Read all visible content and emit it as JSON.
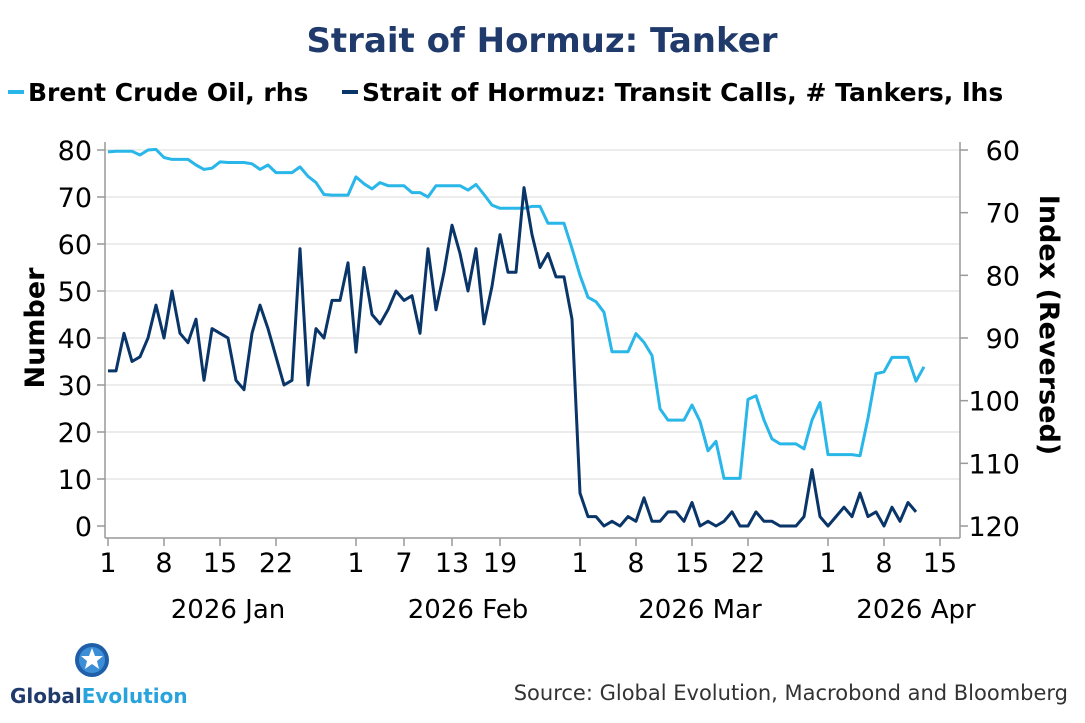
{
  "chart_data": {
    "type": "line",
    "title": "Strait of Hormuz: Tanker",
    "legend_position": "top",
    "colors": {
      "brent": "#29b6e8",
      "tankers": "#0a3568",
      "title": "#1f3a6b",
      "grid": "#d9d9d9"
    },
    "series": [
      {
        "name": "Strait of Hormuz: Transit Calls,  # Tankers, lhs",
        "legend_label": "Strait of Hormuz: Transit Calls,  # Tankers, lhs",
        "axis": "left",
        "day_offsets": [
          0,
          1,
          2,
          3,
          4,
          5,
          6,
          7,
          8,
          9,
          10,
          11,
          12,
          13,
          14,
          15,
          16,
          17,
          18,
          19,
          20,
          21,
          22,
          23,
          24,
          25,
          26,
          27,
          28,
          29,
          30,
          31,
          32,
          33,
          34,
          35,
          36,
          37,
          38,
          39,
          40,
          41,
          42,
          43,
          44,
          45,
          46,
          47,
          48,
          49,
          50,
          51,
          52,
          53,
          54,
          55,
          56,
          57,
          58,
          59,
          60,
          61,
          62,
          63,
          64,
          65,
          66,
          67,
          68,
          69,
          70,
          71,
          72,
          73,
          74,
          75,
          76,
          77,
          78,
          79,
          80,
          81,
          82,
          83,
          84,
          85,
          86,
          87,
          88,
          89,
          90,
          91,
          92,
          93,
          94,
          95,
          96,
          97,
          98,
          99,
          100,
          101,
          102
        ],
        "values": [
          33,
          33,
          41,
          35,
          36,
          40,
          47,
          40,
          50,
          41,
          39,
          44,
          31,
          42,
          41,
          40,
          31,
          29,
          41,
          47,
          42,
          36,
          30,
          31,
          59,
          30,
          42,
          40,
          48,
          48,
          56,
          37,
          55,
          45,
          43,
          46,
          50,
          48,
          49,
          41,
          59,
          46,
          54,
          64,
          58,
          50,
          59,
          43,
          51,
          62,
          54,
          54,
          72,
          62,
          55,
          58,
          53,
          53,
          44,
          7,
          2,
          2,
          0,
          1,
          0,
          2,
          1,
          6,
          1,
          1,
          3,
          3,
          1,
          5,
          0,
          1,
          0,
          1,
          3,
          0,
          0,
          3,
          1,
          1,
          0,
          0,
          0,
          2,
          12,
          2,
          0,
          2,
          4,
          2,
          7,
          2,
          3,
          0,
          4,
          1,
          5,
          3,
          null
        ]
      },
      {
        "name": "Brent Crude Oil, rhs",
        "legend_label": "Brent Crude Oil, rhs",
        "axis": "right",
        "day_offsets": [
          0,
          1,
          2,
          3,
          4,
          5,
          6,
          7,
          8,
          9,
          10,
          11,
          12,
          13,
          14,
          15,
          16,
          17,
          18,
          19,
          20,
          21,
          22,
          23,
          24,
          25,
          26,
          27,
          28,
          29,
          30,
          31,
          32,
          33,
          34,
          35,
          36,
          37,
          38,
          39,
          40,
          41,
          42,
          43,
          44,
          45,
          46,
          47,
          48,
          49,
          50,
          51,
          52,
          53,
          54,
          55,
          56,
          57,
          58,
          59,
          60,
          61,
          62,
          63,
          64,
          65,
          66,
          67,
          68,
          69,
          70,
          71,
          72,
          73,
          74,
          75,
          76,
          77,
          78,
          79,
          80,
          81,
          82,
          83,
          84,
          85,
          86,
          87,
          88,
          89,
          90,
          91,
          92,
          93,
          94,
          95,
          96,
          97,
          98,
          99,
          100,
          101,
          102
        ],
        "values": [
          60.3,
          60.2,
          60.2,
          60.2,
          60.8,
          60,
          59.9,
          61.2,
          61.5,
          61.5,
          61.5,
          62.4,
          63.1,
          62.9,
          61.9,
          62,
          62,
          62,
          62.2,
          63.1,
          62.4,
          63.6,
          63.6,
          63.6,
          62.7,
          64.2,
          65.2,
          67.1,
          67.2,
          67.2,
          67.2,
          64.3,
          65.4,
          66.2,
          65.2,
          65.7,
          65.7,
          65.7,
          66.8,
          66.8,
          67.5,
          65.7,
          65.7,
          65.7,
          65.7,
          66.4,
          65.5,
          67.1,
          68.8,
          69.3,
          69.3,
          69.3,
          69.3,
          69,
          69,
          71.7,
          71.7,
          71.7,
          75.7,
          80,
          83.5,
          84.2,
          85.9,
          92.2,
          92.2,
          92.2,
          89.3,
          90.7,
          92.8,
          101.3,
          103.1,
          103.1,
          103.1,
          100.7,
          103.3,
          108,
          106.5,
          112.4,
          112.4,
          112.4,
          99.8,
          99.2,
          103.1,
          106.1,
          106.9,
          106.9,
          106.9,
          107.7,
          103.1,
          100.3,
          108.6,
          108.6,
          108.6,
          108.6,
          108.8,
          102.8,
          95.7,
          95.4,
          93.1,
          93.1,
          93.1,
          96.9,
          94.6
        ]
      }
    ],
    "x_axis": {
      "start_offset": 0,
      "end_offset": 103,
      "ticks": [
        {
          "label": "1",
          "offset": 0
        },
        {
          "label": "8",
          "offset": 7
        },
        {
          "label": "15",
          "offset": 14
        },
        {
          "label": "22",
          "offset": 21
        },
        {
          "label": "1",
          "offset": 31
        },
        {
          "label": "7",
          "offset": 37
        },
        {
          "label": "13",
          "offset": 43
        },
        {
          "label": "19",
          "offset": 49
        },
        {
          "label": "1",
          "offset": 59
        },
        {
          "label": "8",
          "offset": 66
        },
        {
          "label": "15",
          "offset": 73
        },
        {
          "label": "22",
          "offset": 80
        },
        {
          "label": "1",
          "offset": 90
        },
        {
          "label": "8",
          "offset": 97
        },
        {
          "label": "15",
          "offset": 104
        }
      ],
      "months": [
        {
          "label": "2026 Jan",
          "offset": 15
        },
        {
          "label": "2026 Feb",
          "offset": 45
        },
        {
          "label": "2026 Mar",
          "offset": 74
        },
        {
          "label": "2026 Apr",
          "offset": 101
        }
      ]
    },
    "y_left": {
      "label": "Number",
      "ylim": [
        0,
        80
      ],
      "ticks": [
        0,
        10,
        20,
        30,
        40,
        50,
        60,
        70,
        80
      ]
    },
    "y_right": {
      "label": "Index (Reversed)",
      "ylim": [
        60,
        120
      ],
      "reversed": true,
      "ticks": [
        60,
        70,
        80,
        90,
        100,
        110,
        120
      ]
    },
    "grid": true,
    "source": "Source: Global Evolution, Macrobond and Bloomberg"
  },
  "logo": {
    "text_part1": "Global",
    "text_part2": "Evolution"
  }
}
